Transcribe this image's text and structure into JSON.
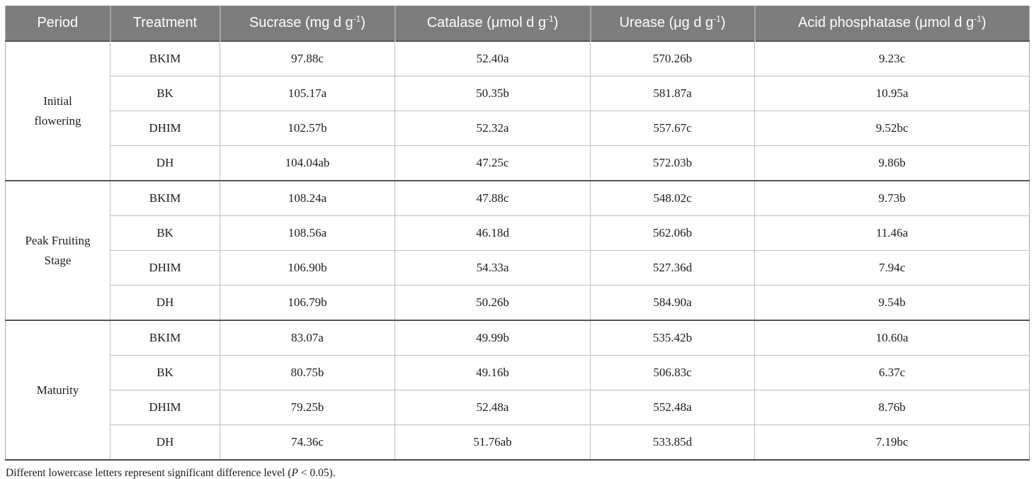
{
  "table": {
    "header_bg_color": "#7d7d7d",
    "header_text_color": "#ffffff",
    "columns": [
      {
        "label": "Period"
      },
      {
        "label": "Treatment"
      },
      {
        "label": "Sucrase (mg d g",
        "sup": "-1",
        "close": ")"
      },
      {
        "label": "Catalase (μmol d g",
        "sup": "-1",
        "close": ")"
      },
      {
        "label": "Urease (μg d g",
        "sup": "-1",
        "close": ")"
      },
      {
        "label": "Acid phosphatase (μmol d g",
        "sup": "-1",
        "close": ")"
      }
    ],
    "groups": [
      {
        "period": "Initial flowering",
        "rows": [
          {
            "treatment": "BKIM",
            "sucrase": "97.88c",
            "catalase": "52.40a",
            "urease": "570.26b",
            "acid_phosphatase": "9.23c"
          },
          {
            "treatment": "BK",
            "sucrase": "105.17a",
            "catalase": "50.35b",
            "urease": "581.87a",
            "acid_phosphatase": "10.95a"
          },
          {
            "treatment": "DHIM",
            "sucrase": "102.57b",
            "catalase": "52.32a",
            "urease": "557.67c",
            "acid_phosphatase": "9.52bc"
          },
          {
            "treatment": "DH",
            "sucrase": "104.04ab",
            "catalase": "47.25c",
            "urease": "572.03b",
            "acid_phosphatase": "9.86b"
          }
        ]
      },
      {
        "period": "Peak Fruiting Stage",
        "rows": [
          {
            "treatment": "BKIM",
            "sucrase": "108.24a",
            "catalase": "47.88c",
            "urease": "548.02c",
            "acid_phosphatase": "9.73b"
          },
          {
            "treatment": "BK",
            "sucrase": "108.56a",
            "catalase": "46.18d",
            "urease": "562.06b",
            "acid_phosphatase": "11.46a"
          },
          {
            "treatment": "DHIM",
            "sucrase": "106.90b",
            "catalase": "54.33a",
            "urease": "527.36d",
            "acid_phosphatase": "7.94c"
          },
          {
            "treatment": "DH",
            "sucrase": "106.79b",
            "catalase": "50.26b",
            "urease": "584.90a",
            "acid_phosphatase": "9.54b"
          }
        ]
      },
      {
        "period": "Maturity",
        "rows": [
          {
            "treatment": "BKIM",
            "sucrase": "83.07a",
            "catalase": "49.99b",
            "urease": "535.42b",
            "acid_phosphatase": "10.60a"
          },
          {
            "treatment": "BK",
            "sucrase": "80.75b",
            "catalase": "49.16b",
            "urease": "506.83c",
            "acid_phosphatase": "6.37c"
          },
          {
            "treatment": "DHIM",
            "sucrase": "79.25b",
            "catalase": "52.48a",
            "urease": "552.48a",
            "acid_phosphatase": "8.76b"
          },
          {
            "treatment": "DH",
            "sucrase": "74.36c",
            "catalase": "51.76ab",
            "urease": "533.85d",
            "acid_phosphatase": "7.19bc"
          }
        ]
      }
    ]
  },
  "footnote": {
    "text_before_italic": "Different lowercase letters represent significant difference level (",
    "italic_text": "P",
    "text_after_italic": " < 0.05)."
  }
}
